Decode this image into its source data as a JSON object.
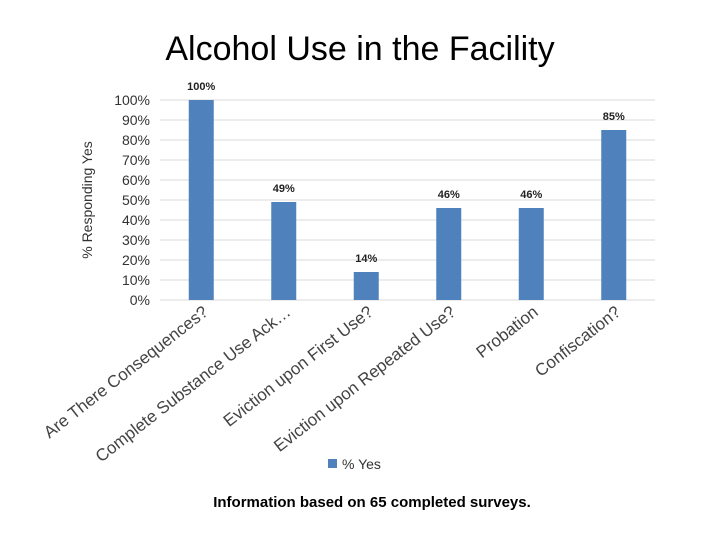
{
  "chart_data": {
    "type": "bar",
    "title": "Alcohol Use in the Facility",
    "ylabel": "% Responding Yes",
    "xlabel": "",
    "ylim": [
      0,
      100
    ],
    "yticks": [
      "0%",
      "10%",
      "20%",
      "30%",
      "40%",
      "50%",
      "60%",
      "70%",
      "80%",
      "90%",
      "100%"
    ],
    "categories": [
      "Are There Consequences?",
      "Complete Substance Use Ack…",
      "Eviction upon First Use?",
      "Eviction upon Repeated Use?",
      "Probation",
      "Confiscation?"
    ],
    "series": [
      {
        "name": "% Yes",
        "values": [
          100,
          49,
          14,
          46,
          46,
          85
        ],
        "labels": [
          "100%",
          "49%",
          "14%",
          "46%",
          "46%",
          "85%"
        ],
        "color": "#4f81bd"
      }
    ],
    "grid": true,
    "legend": "bottom"
  },
  "footnote": "Information based on 65 completed surveys."
}
